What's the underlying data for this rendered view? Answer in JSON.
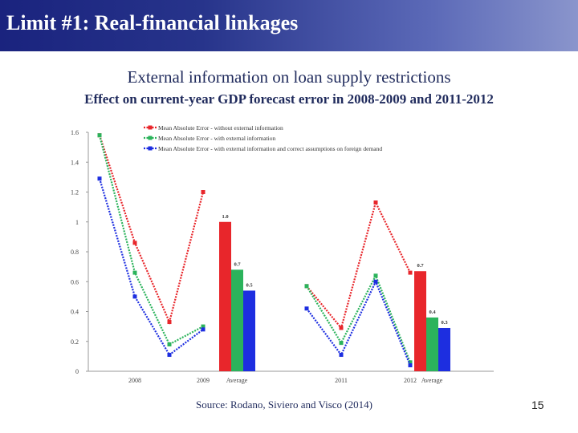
{
  "slide": {
    "title": "Limit #1: Real-financial linkages",
    "heading": "External information on loan supply restrictions",
    "subheading": "Effect on current-year GDP forecast error in 2008-2009 and 2011-2012",
    "source": "Source: Rodano, Siviero and Visco (2014)",
    "page_number": "15"
  },
  "chart_data": {
    "type": "line",
    "title": "",
    "xlabel": "",
    "ylabel": "",
    "ylim": [
      0,
      1.6
    ],
    "yticks": [
      0,
      0.2,
      0.4,
      0.6,
      0.8,
      1,
      1.2,
      1.4,
      1.6
    ],
    "ytick_labels": [
      "0",
      "0.2",
      "0.4",
      "0.6",
      "0.8",
      "1",
      "1.2",
      "1.4",
      "1.6"
    ],
    "x_labels": [
      "2008",
      "2009",
      "Average",
      "2011",
      "2012",
      "Average"
    ],
    "legend_position": "top-left",
    "grid": false,
    "colors": [
      "#e8262b",
      "#2bb35b",
      "#1d2ee0"
    ],
    "series": [
      {
        "name": "Mean Absolute Error - without external information",
        "color": "#e8262b",
        "segment1": [
          1.58,
          0.86,
          0.33,
          1.2
        ],
        "segment2": [
          0.57,
          0.29,
          1.13,
          0.66
        ],
        "average_bars": [
          1.0,
          0.67
        ],
        "bar_labels": [
          "1.0",
          "0.7"
        ]
      },
      {
        "name": "Mean Absolute Error - with external information",
        "color": "#2bb35b",
        "segment1": [
          1.58,
          0.66,
          0.18,
          0.3
        ],
        "segment2": [
          0.57,
          0.19,
          0.64,
          0.06
        ],
        "average_bars": [
          0.68,
          0.36
        ],
        "bar_labels": [
          "0.7",
          "0.4"
        ]
      },
      {
        "name": "Mean Absolute Error - with external information and correct assumptions on foreign demand",
        "color": "#1d2ee0",
        "segment1": [
          1.29,
          0.5,
          0.11,
          0.28
        ],
        "segment2": [
          0.42,
          0.11,
          0.6,
          0.04
        ],
        "average_bars": [
          0.54,
          0.29
        ],
        "bar_labels": [
          "0.5",
          "0.3"
        ]
      }
    ]
  }
}
